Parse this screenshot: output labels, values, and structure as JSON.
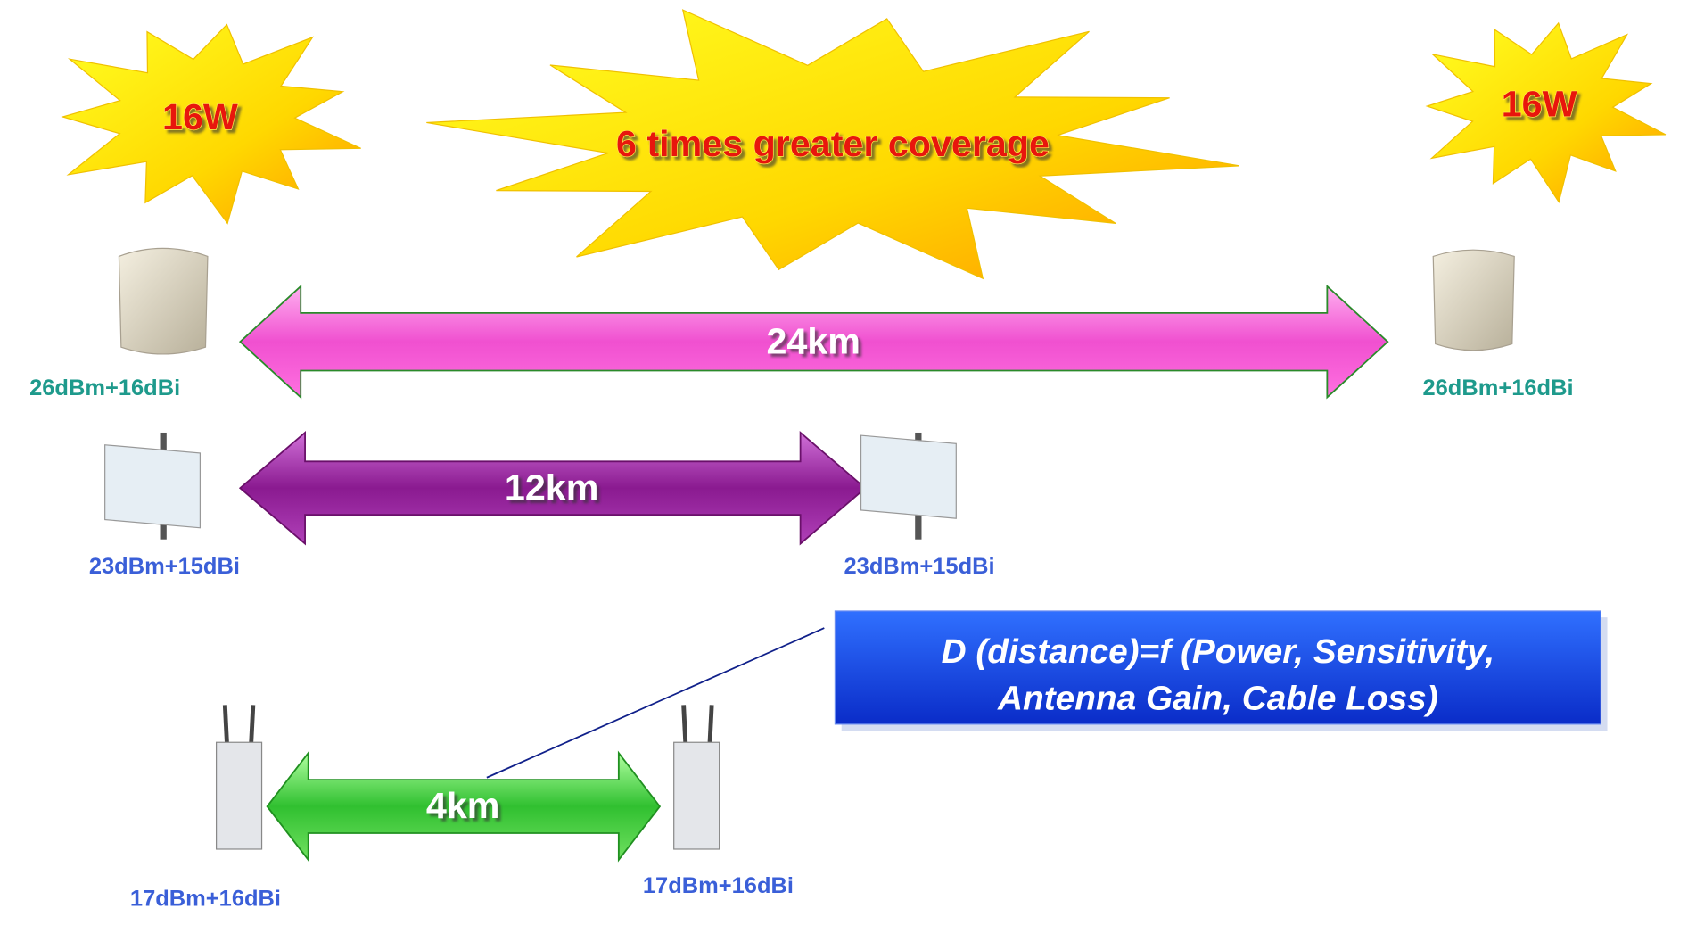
{
  "bursts": [
    {
      "label": "16W"
    },
    {
      "label": "6 times greater coverage"
    },
    {
      "label": "16W"
    }
  ],
  "links": [
    {
      "distance": "24km",
      "left": "26dBm+16dBi",
      "right": "26dBm+16dBi"
    },
    {
      "distance": "12km",
      "left": "23dBm+15dBi",
      "right": "23dBm+15dBi"
    },
    {
      "distance": "4km",
      "left": "17dBm+16dBi",
      "right": "17dBm+16dBi"
    }
  ],
  "formula": {
    "lines": [
      "D (distance)=f (Power, Sensitivity,",
      "Antenna Gain, Cable Loss)"
    ]
  }
}
